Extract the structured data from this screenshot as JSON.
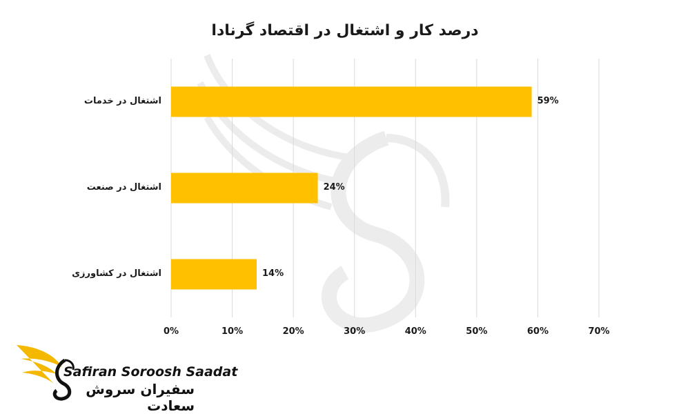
{
  "chart_data": {
    "type": "bar",
    "orientation": "horizontal",
    "title": "درصد کار و اشتغال در اقتصاد گرنادا",
    "categories": [
      "اشتغال در خدمات",
      "اشتغال در صنعت",
      "اشتغال در کشاورزی"
    ],
    "values": [
      59,
      24,
      14
    ],
    "value_labels": [
      "59%",
      "24%",
      "14%"
    ],
    "xlim": [
      0,
      70
    ],
    "x_ticks": [
      "0%",
      "10%",
      "20%",
      "30%",
      "40%",
      "50%",
      "60%",
      "70%"
    ],
    "grid": "vertical",
    "bar_color": "#FFC000"
  },
  "logo": {
    "name_en": "Safiran Soroosh Saadat",
    "name_fa": "سفیران سروش سعادت",
    "icon": "bird-wing-logo-icon",
    "accent": "#F5B800"
  }
}
